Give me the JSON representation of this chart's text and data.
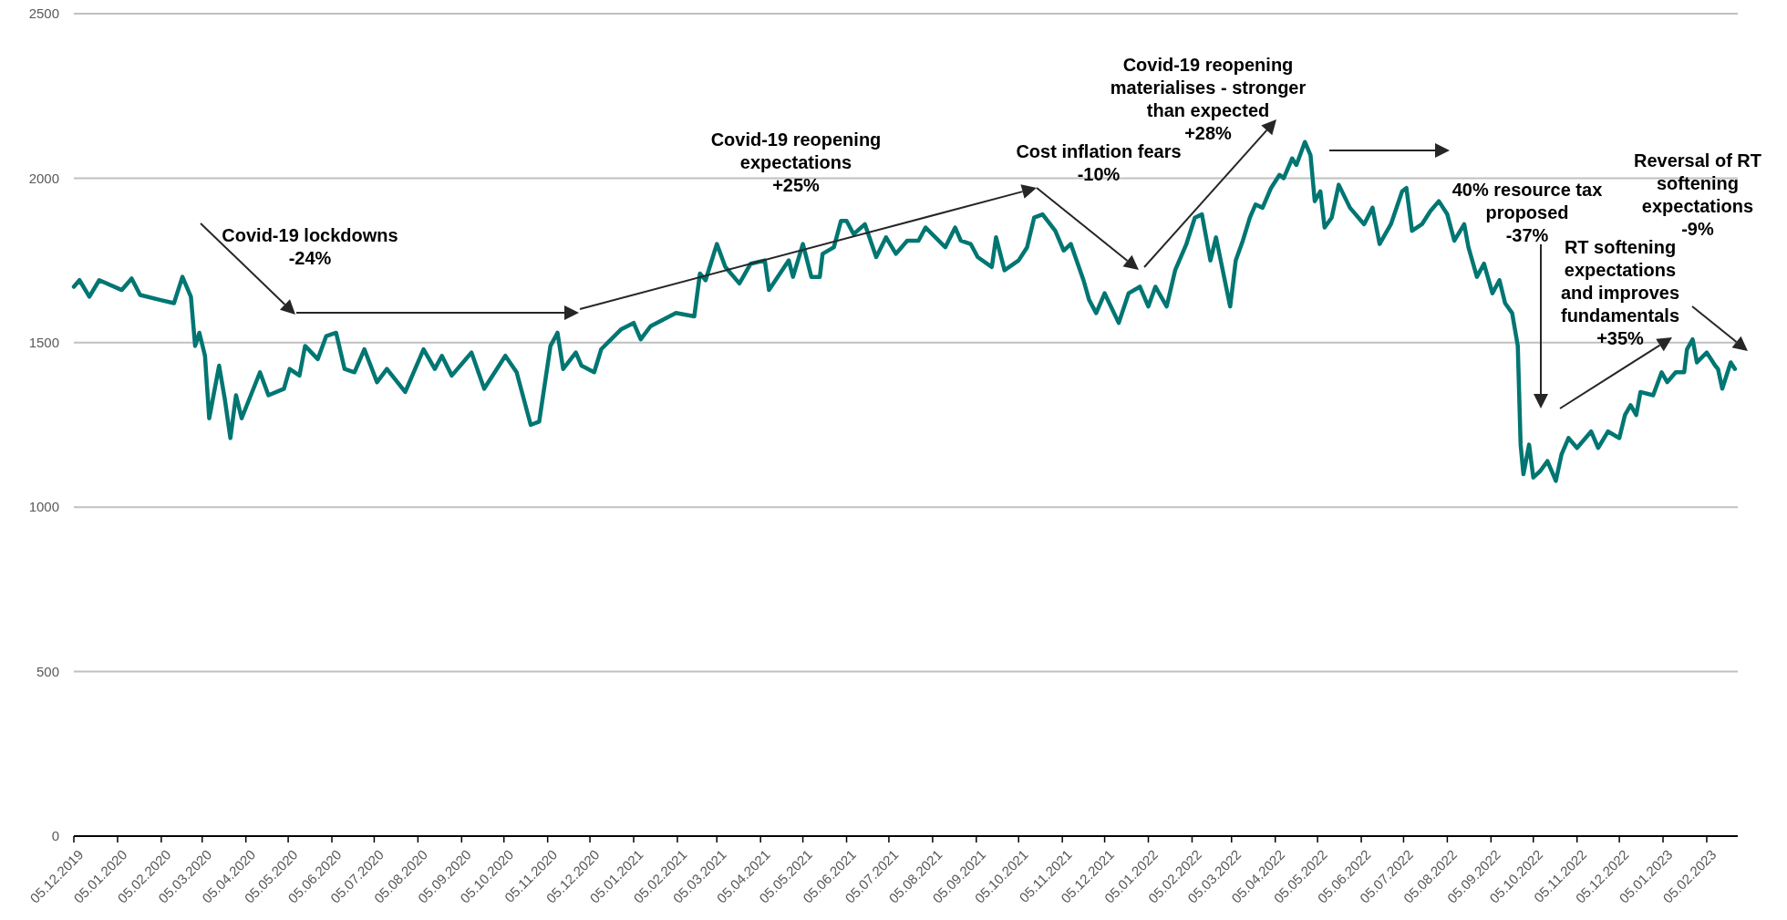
{
  "chart_data": {
    "type": "line",
    "color": "#007672",
    "line_style": "solid",
    "marker": "none",
    "grid": "y",
    "xlim": [
      "2019-12-05",
      "2023-02-27"
    ],
    "ylim": [
      0,
      2500
    ],
    "yticks": [
      0,
      500,
      1000,
      1500,
      2000,
      2500
    ],
    "xticks": [
      {
        "value": "2019-12-05",
        "label": "05.12.2019"
      },
      {
        "value": "2020-01-05",
        "label": "05.01.2020"
      },
      {
        "value": "2020-02-05",
        "label": "05.02.2020"
      },
      {
        "value": "2020-03-05",
        "label": "05.03.2020"
      },
      {
        "value": "2020-04-05",
        "label": "05.04.2020"
      },
      {
        "value": "2020-05-05",
        "label": "05.05.2020"
      },
      {
        "value": "2020-06-05",
        "label": "05.06.2020"
      },
      {
        "value": "2020-07-05",
        "label": "05.07.2020"
      },
      {
        "value": "2020-08-05",
        "label": "05.08.2020"
      },
      {
        "value": "2020-09-05",
        "label": "05.09.2020"
      },
      {
        "value": "2020-10-05",
        "label": "05.10.2020"
      },
      {
        "value": "2020-11-05",
        "label": "05.11.2020"
      },
      {
        "value": "2020-12-05",
        "label": "05.12.2020"
      },
      {
        "value": "2021-01-05",
        "label": "05.01.2021"
      },
      {
        "value": "2021-02-05",
        "label": "05.02.2021"
      },
      {
        "value": "2021-03-05",
        "label": "05.03.2021"
      },
      {
        "value": "2021-04-05",
        "label": "05.04.2021"
      },
      {
        "value": "2021-05-05",
        "label": "05.05.2021"
      },
      {
        "value": "2021-06-05",
        "label": "05.06.2021"
      },
      {
        "value": "2021-07-05",
        "label": "05.07.2021"
      },
      {
        "value": "2021-08-05",
        "label": "05.08.2021"
      },
      {
        "value": "2021-09-05",
        "label": "05.09.2021"
      },
      {
        "value": "2021-10-05",
        "label": "05.10.2021"
      },
      {
        "value": "2021-11-05",
        "label": "05.11.2021"
      },
      {
        "value": "2021-12-05",
        "label": "05.12.2021"
      },
      {
        "value": "2022-01-05",
        "label": "05.01.2022"
      },
      {
        "value": "2022-02-05",
        "label": "05.02.2022"
      },
      {
        "value": "2022-03-05",
        "label": "05.03.2022"
      },
      {
        "value": "2022-04-05",
        "label": "05.04.2022"
      },
      {
        "value": "2022-05-05",
        "label": "05.05.2022"
      },
      {
        "value": "2022-06-05",
        "label": "05.06.2022"
      },
      {
        "value": "2022-07-05",
        "label": "05.07.2022"
      },
      {
        "value": "2022-08-05",
        "label": "05.08.2022"
      },
      {
        "value": "2022-09-05",
        "label": "05.09.2022"
      },
      {
        "value": "2022-10-05",
        "label": "05.10.2022"
      },
      {
        "value": "2022-11-05",
        "label": "05.11.2022"
      },
      {
        "value": "2022-12-05",
        "label": "05.12.2022"
      },
      {
        "value": "2023-01-05",
        "label": "05.01.2023"
      },
      {
        "value": "2023-02-05",
        "label": "05.02.2023"
      }
    ],
    "annotations": [
      "Covid-19 lockdowns\n-24%",
      "Covid-19 reopening\nexpectations\n+25%",
      "Cost inflation fears\n-10%",
      "Covid-19 reopening\nmaterialises - stronger\nthan expected\n+28%",
      "40% resource tax\nproposed\n-37%",
      "RT softening\nexpectations\nand improves\nfundamentals\n+35%",
      "Reversal of RT\nsoftening\nexpectations\n-9%"
    ],
    "x": [
      "2019-12-05",
      "2019-12-09",
      "2019-12-16",
      "2019-12-23",
      "2020-01-08",
      "2020-01-15",
      "2020-01-21",
      "2020-02-04",
      "2020-02-14",
      "2020-02-20",
      "2020-02-26",
      "2020-02-29",
      "2020-03-03",
      "2020-03-07",
      "2020-03-10",
      "2020-03-17",
      "2020-03-21",
      "2020-03-25",
      "2020-03-29",
      "2020-04-02",
      "2020-04-15",
      "2020-04-21",
      "2020-05-02",
      "2020-05-06",
      "2020-05-13",
      "2020-05-17",
      "2020-05-26",
      "2020-06-01",
      "2020-06-08",
      "2020-06-14",
      "2020-06-21",
      "2020-06-28",
      "2020-07-07",
      "2020-07-14",
      "2020-07-27",
      "2020-08-09",
      "2020-08-17",
      "2020-08-22",
      "2020-08-29",
      "2020-09-12",
      "2020-09-21",
      "2020-10-06",
      "2020-10-14",
      "2020-10-24",
      "2020-10-30",
      "2020-11-07",
      "2020-11-12",
      "2020-11-16",
      "2020-11-25",
      "2020-11-29",
      "2020-12-08",
      "2020-12-13",
      "2020-12-20",
      "2020-12-27",
      "2021-01-05",
      "2021-01-10",
      "2021-01-17",
      "2021-02-04",
      "2021-02-17",
      "2021-02-21",
      "2021-02-25",
      "2021-03-05",
      "2021-03-11",
      "2021-03-21",
      "2021-03-29",
      "2021-04-08",
      "2021-04-11",
      "2021-04-25",
      "2021-04-28",
      "2021-05-05",
      "2021-05-11",
      "2021-05-17",
      "2021-05-19",
      "2021-05-27",
      "2021-06-01",
      "2021-06-05",
      "2021-06-10",
      "2021-06-18",
      "2021-06-26",
      "2021-07-03",
      "2021-07-10",
      "2021-07-18",
      "2021-07-26",
      "2021-07-31",
      "2021-08-14",
      "2021-08-21",
      "2021-08-25",
      "2021-09-01",
      "2021-09-06",
      "2021-09-16",
      "2021-09-19",
      "2021-09-25",
      "2021-10-05",
      "2021-10-11",
      "2021-10-16",
      "2021-10-22",
      "2021-10-31",
      "2021-11-06",
      "2021-11-11",
      "2021-11-20",
      "2021-11-24",
      "2021-11-29",
      "2021-12-05",
      "2021-12-15",
      "2021-12-22",
      "2021-12-30",
      "2022-01-05",
      "2022-01-10",
      "2022-01-18",
      "2022-01-24",
      "2022-02-01",
      "2022-02-07",
      "2022-02-12",
      "2022-02-18",
      "2022-02-22",
      "2022-03-04",
      "2022-03-08",
      "2022-03-13",
      "2022-03-18",
      "2022-03-22",
      "2022-03-27",
      "2022-04-02",
      "2022-04-08",
      "2022-04-11",
      "2022-04-17",
      "2022-04-20",
      "2022-04-26",
      "2022-04-30",
      "2022-05-03",
      "2022-05-07",
      "2022-05-10",
      "2022-05-15",
      "2022-05-20",
      "2022-05-28",
      "2022-06-07",
      "2022-06-13",
      "2022-06-18",
      "2022-06-26",
      "2022-07-04",
      "2022-07-07",
      "2022-07-11",
      "2022-07-18",
      "2022-07-24",
      "2022-07-30",
      "2022-08-05",
      "2022-08-10",
      "2022-08-17",
      "2022-08-20",
      "2022-08-26",
      "2022-08-31",
      "2022-09-06",
      "2022-09-11",
      "2022-09-15",
      "2022-09-20",
      "2022-09-24",
      "2022-09-26",
      "2022-09-28",
      "2022-10-02",
      "2022-10-05",
      "2022-10-10",
      "2022-10-15",
      "2022-10-21",
      "2022-10-25",
      "2022-10-30",
      "2022-11-05",
      "2022-11-15",
      "2022-11-20",
      "2022-11-27",
      "2022-12-05",
      "2022-12-09",
      "2022-12-13",
      "2022-12-17",
      "2022-12-20",
      "2022-12-29",
      "2023-01-04",
      "2023-01-08",
      "2023-01-14",
      "2023-01-20",
      "2023-01-22",
      "2023-01-26",
      "2023-01-29",
      "2023-02-05",
      "2023-02-11",
      "2023-02-13",
      "2023-02-16",
      "2023-02-22",
      "2023-02-25"
    ],
    "values": [
      1670,
      1690,
      1640,
      1690,
      1660,
      1695,
      1645,
      1630,
      1620,
      1700,
      1640,
      1490,
      1530,
      1460,
      1270,
      1430,
      1330,
      1210,
      1340,
      1270,
      1410,
      1340,
      1360,
      1420,
      1400,
      1490,
      1450,
      1520,
      1530,
      1420,
      1410,
      1480,
      1380,
      1420,
      1350,
      1480,
      1420,
      1460,
      1400,
      1470,
      1360,
      1460,
      1410,
      1250,
      1260,
      1490,
      1530,
      1420,
      1470,
      1430,
      1410,
      1480,
      1510,
      1540,
      1560,
      1510,
      1550,
      1590,
      1580,
      1710,
      1690,
      1800,
      1730,
      1680,
      1740,
      1750,
      1660,
      1750,
      1700,
      1800,
      1700,
      1700,
      1770,
      1790,
      1870,
      1870,
      1830,
      1860,
      1760,
      1820,
      1770,
      1810,
      1810,
      1850,
      1790,
      1850,
      1810,
      1800,
      1760,
      1730,
      1820,
      1720,
      1750,
      1790,
      1880,
      1890,
      1840,
      1780,
      1800,
      1690,
      1630,
      1590,
      1650,
      1560,
      1650,
      1670,
      1610,
      1670,
      1610,
      1720,
      1800,
      1880,
      1890,
      1750,
      1820,
      1610,
      1750,
      1810,
      1880,
      1920,
      1910,
      1970,
      2010,
      2000,
      2060,
      2040,
      2110,
      2070,
      1930,
      1960,
      1850,
      1880,
      1980,
      1910,
      1860,
      1910,
      1800,
      1860,
      1960,
      1970,
      1840,
      1860,
      1900,
      1930,
      1890,
      1810,
      1860,
      1790,
      1700,
      1740,
      1650,
      1690,
      1620,
      1590,
      1490,
      1190,
      1100,
      1190,
      1090,
      1110,
      1140,
      1080,
      1160,
      1210,
      1180,
      1230,
      1180,
      1230,
      1210,
      1280,
      1310,
      1280,
      1350,
      1340,
      1410,
      1380,
      1410,
      1410,
      1480,
      1510,
      1440,
      1470,
      1430,
      1420,
      1360,
      1440,
      1420
    ]
  }
}
